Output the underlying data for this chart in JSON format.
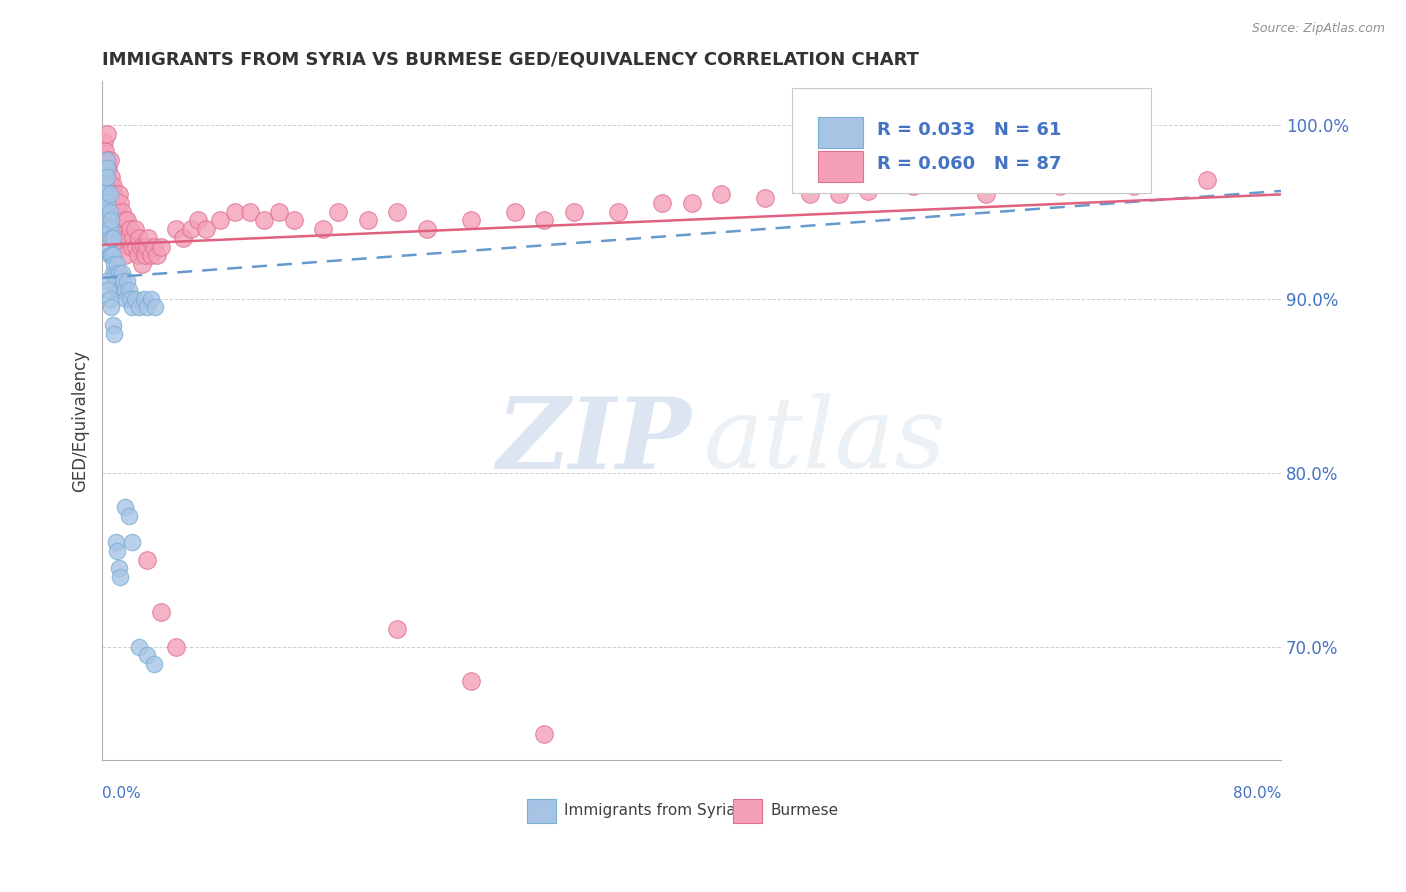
{
  "title": "IMMIGRANTS FROM SYRIA VS BURMESE GED/EQUIVALENCY CORRELATION CHART",
  "source": "Source: ZipAtlas.com",
  "ylabel": "GED/Equivalency",
  "series1_label": "Immigrants from Syria",
  "series2_label": "Burmese",
  "series1_R": 0.033,
  "series1_N": 61,
  "series2_R": 0.06,
  "series2_N": 87,
  "series1_color": "#a8c4e5",
  "series2_color": "#f4a0b8",
  "series1_edge": "#7aafd4",
  "series2_edge": "#e07090",
  "trend1_color": "#6699cc",
  "trend2_color": "#e06080",
  "xmin": 0.0,
  "xmax": 0.8,
  "ymin": 0.635,
  "ymax": 1.025,
  "yticks": [
    0.7,
    0.8,
    0.9,
    1.0
  ],
  "ytick_labels": [
    "70.0%",
    "80.0%",
    "90.0%",
    "100.0%"
  ],
  "watermark_zip": "ZIP",
  "watermark_atlas": "atlas",
  "background_color": "#ffffff",
  "grid_color": "#d0d0d0",
  "title_fontsize": 13,
  "legend_text_color": "#4472c4"
}
